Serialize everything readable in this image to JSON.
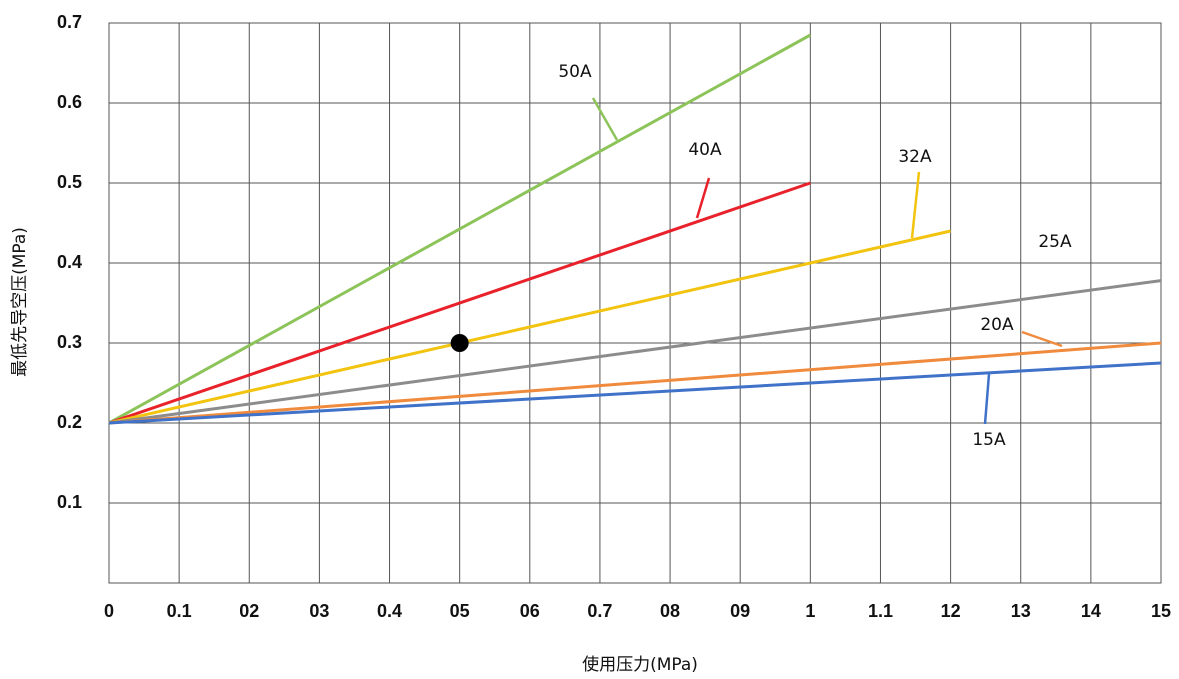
{
  "chart_data": {
    "type": "line",
    "xlabel": "使用压力(MPa)",
    "ylabel": "最低先导空压(MPa)",
    "xlim": [
      0,
      1.5
    ],
    "ylim": [
      0,
      0.7
    ],
    "xticks": [
      0,
      0.1,
      {
        "value": 0.2,
        "label": "02"
      },
      {
        "value": 0.3,
        "label": "03"
      },
      0.4,
      {
        "value": 0.5,
        "label": "05"
      },
      {
        "value": 0.6,
        "label": "06"
      },
      0.7,
      {
        "value": 0.8,
        "label": "08"
      },
      {
        "value": 0.9,
        "label": "09"
      },
      1,
      1.1,
      {
        "value": 1.2,
        "label": "12"
      },
      {
        "value": 1.3,
        "label": "13"
      },
      {
        "value": 1.4,
        "label": "14"
      },
      {
        "value": 1.5,
        "label": "15"
      }
    ],
    "yticks": [
      0.1,
      0.2,
      0.3,
      0.4,
      0.5,
      0.6,
      0.7
    ],
    "grid": true,
    "series": [
      {
        "name": "50A",
        "color": "#8dc45a",
        "x": [
          0,
          1
        ],
        "values": [
          0.2,
          0.685
        ]
      },
      {
        "name": "40A",
        "color": "#e8212a",
        "x": [
          0,
          1
        ],
        "values": [
          0.2,
          0.5
        ]
      },
      {
        "name": "32A",
        "color": "#f2c40f",
        "x": [
          0,
          1.2
        ],
        "values": [
          0.2,
          0.44
        ]
      },
      {
        "name": "25A",
        "color": "#8c8c8c",
        "x": [
          0,
          1.5
        ],
        "values": [
          0.2,
          0.378
        ]
      },
      {
        "name": "20A",
        "color": "#f08a3c",
        "x": [
          0,
          1.5
        ],
        "values": [
          0.2,
          0.3
        ]
      },
      {
        "name": "15A",
        "color": "#3f72c8",
        "x": [
          0,
          1.5
        ],
        "values": [
          0.2,
          0.275
        ]
      }
    ],
    "point": {
      "x": 0.5,
      "y": 0.3,
      "color": "#000000"
    }
  }
}
